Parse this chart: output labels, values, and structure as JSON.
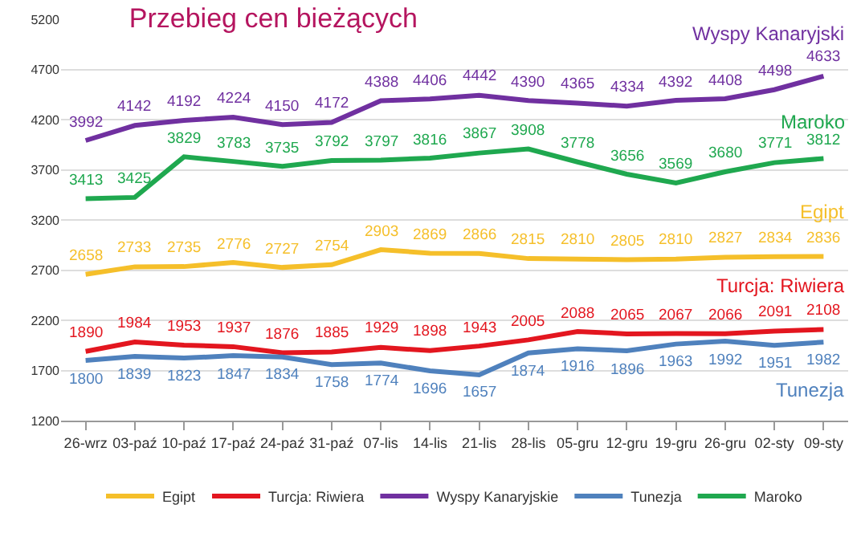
{
  "chart_data": {
    "type": "line",
    "title": "Przebieg cen bieżących",
    "categories": [
      "26-wrz",
      "03-paź",
      "10-paź",
      "17-paź",
      "24-paź",
      "31-paź",
      "07-lis",
      "14-lis",
      "21-lis",
      "28-lis",
      "05-gru",
      "12-gru",
      "19-gru",
      "26-gru",
      "02-sty",
      "09-sty"
    ],
    "series": [
      {
        "name": "Egipt",
        "color": "#f5bf2a",
        "values": [
          2658,
          2733,
          2735,
          2776,
          2727,
          2754,
          2903,
          2869,
          2866,
          2815,
          2810,
          2805,
          2810,
          2827,
          2834,
          2836
        ]
      },
      {
        "name": "Turcja: Riwiera",
        "color": "#e3161f",
        "values": [
          1890,
          1984,
          1953,
          1937,
          1876,
          1885,
          1929,
          1898,
          1943,
          2005,
          2088,
          2065,
          2067,
          2066,
          2091,
          2108
        ]
      },
      {
        "name": "Wyspy Kanaryjskie",
        "color": "#7030a0",
        "values": [
          3992,
          4142,
          4192,
          4224,
          4150,
          4172,
          4388,
          4406,
          4442,
          4390,
          4365,
          4334,
          4392,
          4408,
          4498,
          4633
        ]
      },
      {
        "name": "Tunezja",
        "color": "#4f81bd",
        "values": [
          1800,
          1839,
          1823,
          1847,
          1834,
          1758,
          1774,
          1696,
          1657,
          1874,
          1916,
          1896,
          1963,
          1992,
          1951,
          1982
        ]
      },
      {
        "name": "Maroko",
        "color": "#1fa84f",
        "values": [
          3413,
          3425,
          3829,
          3783,
          3735,
          3792,
          3797,
          3816,
          3867,
          3908,
          3778,
          3656,
          3569,
          3680,
          3771,
          3812
        ]
      }
    ],
    "annotations": [
      "Wyspy Kanaryjski",
      "Maroko",
      "Egipt",
      "Turcja: Riwiera",
      "Tunezja"
    ],
    "ylim": [
      1200,
      5200
    ],
    "yticks": [
      1200,
      1700,
      2200,
      2700,
      3200,
      3700,
      4200,
      4700,
      5200
    ],
    "grid": "y",
    "legend": "bottom",
    "marker": "none",
    "line_style": "solid",
    "data_labels": true
  }
}
